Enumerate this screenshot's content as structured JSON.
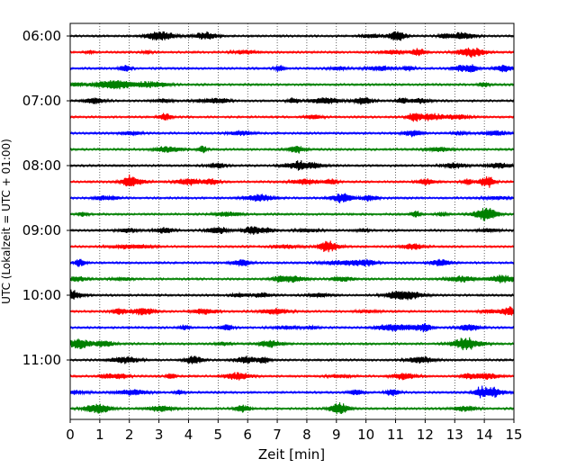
{
  "chart_data": {
    "type": "line",
    "title": "",
    "xlabel": "Zeit  [min]",
    "ylabel": "UTC (Lokalzeit = UTC + 01:00)",
    "xlim": [
      0,
      15
    ],
    "x_ticks": [
      "0",
      "1",
      "2",
      "3",
      "4",
      "5",
      "6",
      "7",
      "8",
      "9",
      "10",
      "11",
      "12",
      "13",
      "14",
      "15"
    ],
    "y_ticks": [
      "06:00",
      "07:00",
      "08:00",
      "09:00",
      "10:00",
      "11:00"
    ],
    "grid": "vertical dotted at each minute",
    "trace_interval_min": 15,
    "trace_count": 24,
    "series": [
      {
        "color": "#000000"
      },
      {
        "color": "#ff0000"
      },
      {
        "color": "#0000ff"
      },
      {
        "color": "#008000"
      }
    ]
  }
}
